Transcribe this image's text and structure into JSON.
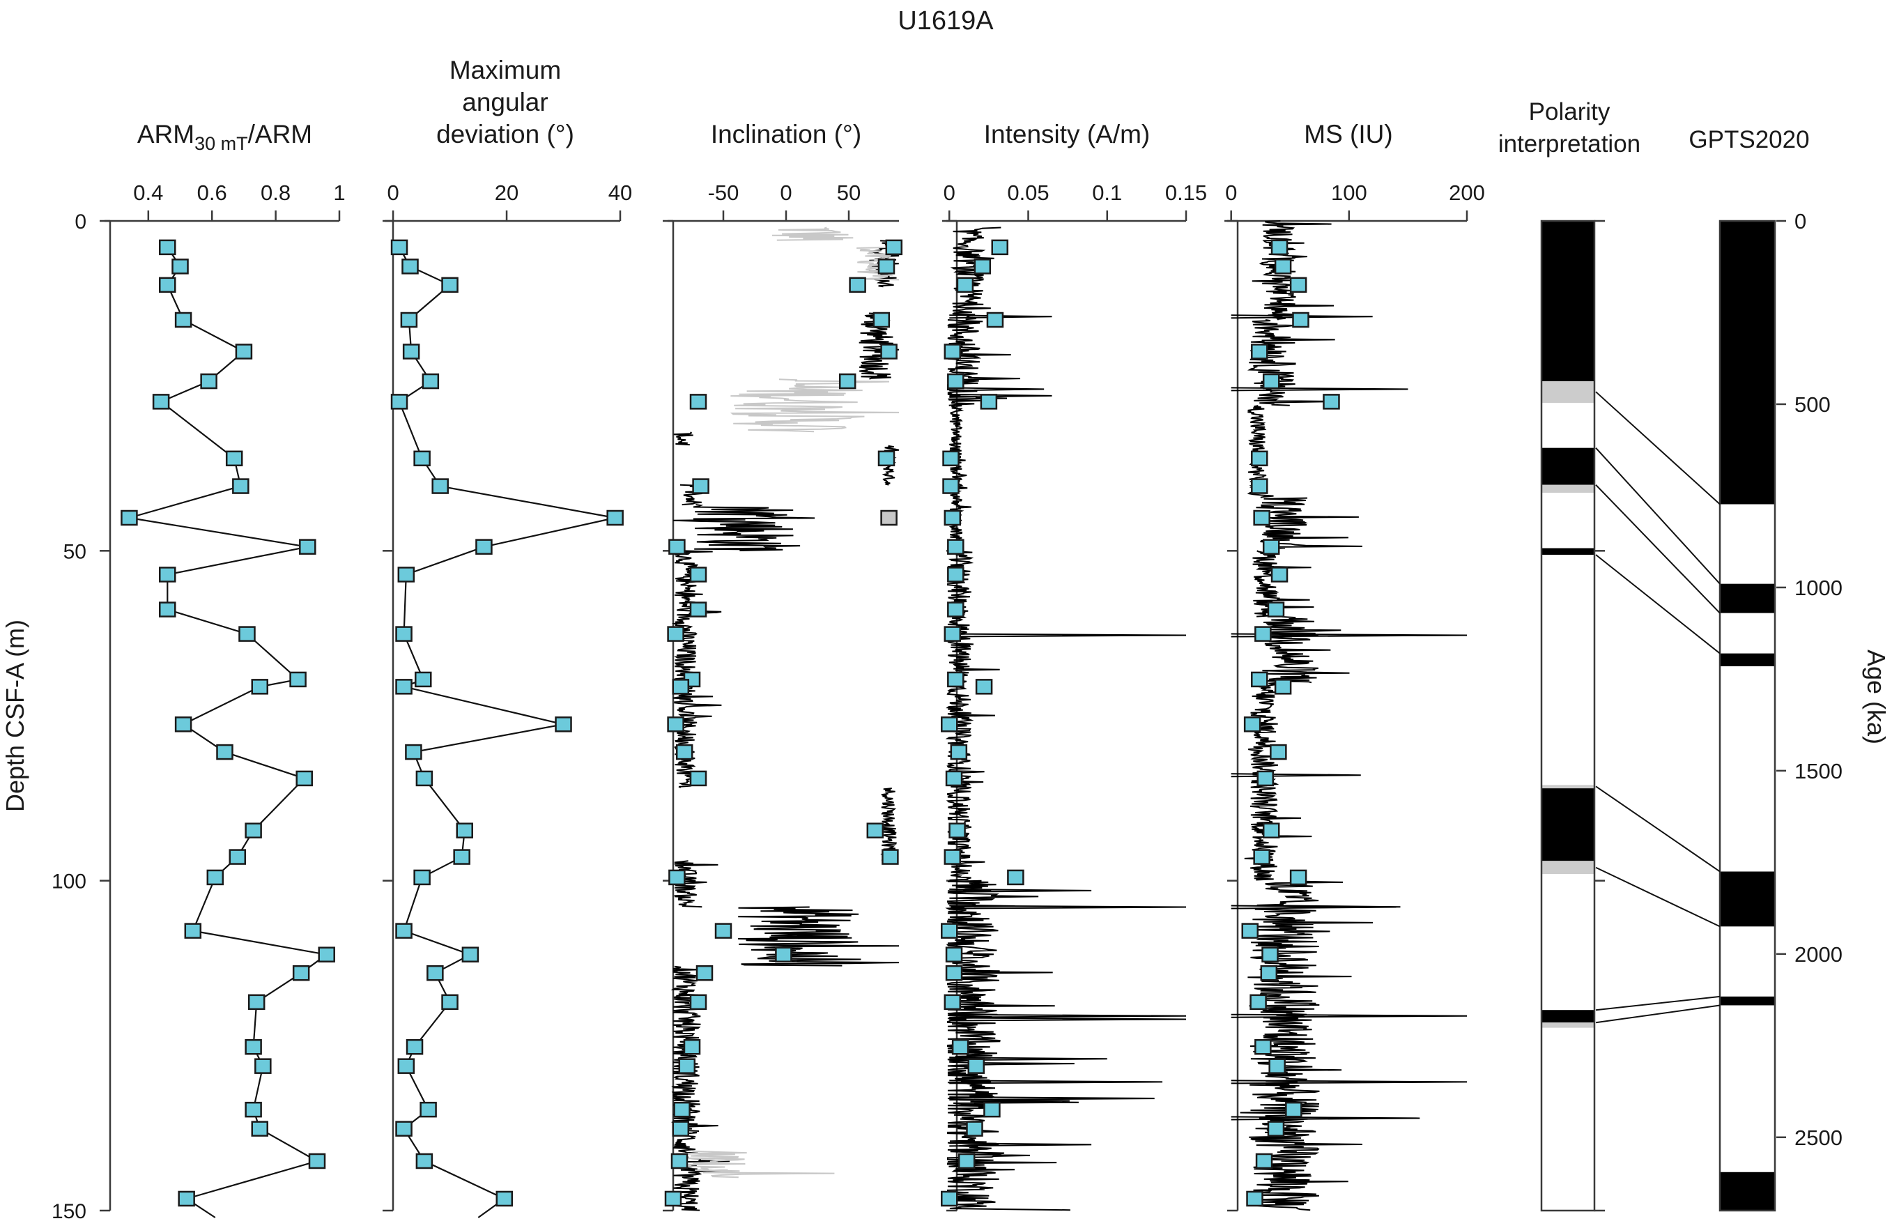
{
  "chart_data": {
    "type": "line",
    "title": "U1619A",
    "depth_axis": {
      "label": "Depth CSF-A (m)",
      "range": [
        0,
        150
      ],
      "ticks": [
        0,
        50,
        100,
        150
      ],
      "inverted": true
    },
    "age_axis": {
      "label": "Age (ka)",
      "range": [
        0,
        2700
      ],
      "ticks": [
        0,
        500,
        1000,
        1500,
        2000,
        2500
      ]
    },
    "sample_depths": [
      4.0,
      6.9,
      9.7,
      15.0,
      19.8,
      24.3,
      27.4,
      36.0,
      40.2,
      45.0,
      49.4,
      53.6,
      58.9,
      62.6,
      69.5,
      70.6,
      76.3,
      80.5,
      84.5,
      92.4,
      96.4,
      99.5,
      107.6,
      111.2,
      114.0,
      118.4,
      125.2,
      128.1,
      134.7,
      137.6,
      142.5,
      148.2
    ],
    "panels": [
      {
        "id": "arm",
        "title": "ARM",
        "title_sub": "30 mT",
        "title_suffix": "/ARM",
        "xlim": [
          0.28,
          1.0
        ],
        "ticks": [
          0.4,
          0.6,
          0.8,
          1.0
        ],
        "tick_labels": [
          "0.4",
          "0.6",
          "0.8",
          "1"
        ],
        "points": [
          0.46,
          0.5,
          0.46,
          0.51,
          0.7,
          0.59,
          0.44,
          0.67,
          0.69,
          0.34,
          0.9,
          0.46,
          0.46,
          0.71,
          0.87,
          0.75,
          0.51,
          0.64,
          0.89,
          0.73,
          0.68,
          0.61,
          0.54,
          0.96,
          0.88,
          0.74,
          0.73,
          0.76,
          0.73,
          0.75,
          0.93,
          0.52
        ],
        "continues_below": 0.61
      },
      {
        "id": "mad",
        "title_lines": [
          "Maximum",
          "angular",
          "deviation (°)"
        ],
        "xlim": [
          -0.5,
          40
        ],
        "ticks": [
          0,
          20,
          40
        ],
        "tick_labels": [
          "0",
          "20",
          "40"
        ],
        "points_depths": [
          4.0,
          6.9,
          9.7,
          15.0,
          19.8,
          24.3,
          27.4,
          36.0,
          40.2,
          45.0,
          49.4,
          53.6,
          62.6,
          69.5,
          70.6,
          76.3,
          80.5,
          84.5,
          92.4,
          96.4,
          99.5,
          107.6,
          111.2,
          114.0,
          118.4,
          125.2,
          128.1,
          134.7,
          137.6,
          142.5,
          148.2
        ],
        "points": [
          1.1,
          3.0,
          10.0,
          2.8,
          3.2,
          6.6,
          1.1,
          5.1,
          8.3,
          39.1,
          16.0,
          2.3,
          1.9,
          5.3,
          1.9,
          30.0,
          3.6,
          5.5,
          12.6,
          12.1,
          5.1,
          1.9,
          13.6,
          7.4,
          10.0,
          3.8,
          2.3,
          6.2,
          1.9,
          5.5,
          19.6
        ],
        "continues_below": 15.0
      },
      {
        "id": "inclination",
        "title": "Inclination (°)",
        "xlim": [
          -90,
          90
        ],
        "ticks": [
          -50,
          0,
          50
        ],
        "tick_labels": [
          "-50",
          "0",
          "50"
        ],
        "points": [
          86,
          80,
          57,
          76,
          82,
          49,
          -70,
          80,
          -68,
          82,
          -87,
          -70,
          -70,
          -88,
          -75,
          -84,
          -88,
          -81,
          -70,
          71,
          83,
          -87,
          -50,
          -2,
          -65,
          -70,
          -75,
          -79,
          -83,
          -84,
          -85,
          -90
        ],
        "gray_point_index": 9,
        "trace_segments": [
          {
            "from": 1,
            "to": 3,
            "level": 20,
            "noise": 40,
            "style": "gray"
          },
          {
            "from": 3,
            "to": 10,
            "level": 78,
            "noise": 12,
            "style": "black"
          },
          {
            "from": 4,
            "to": 9,
            "level": 70,
            "noise": 14,
            "style": "gray"
          },
          {
            "from": 14,
            "to": 24,
            "level": 72,
            "noise": 14,
            "style": "black"
          },
          {
            "from": 24,
            "to": 32,
            "level": 10,
            "noise": 55,
            "style": "gray"
          },
          {
            "from": 32,
            "to": 34,
            "level": -82,
            "noise": 8,
            "style": "black"
          },
          {
            "from": 34,
            "to": 40,
            "level": 82,
            "noise": 5,
            "style": "black"
          },
          {
            "from": 40,
            "to": 43,
            "level": -75,
            "noise": 10,
            "style": "black"
          },
          {
            "from": 43,
            "to": 50,
            "level": -30,
            "noise": 45,
            "style": "black"
          },
          {
            "from": 50,
            "to": 86,
            "level": -80,
            "noise": 9,
            "style": "black"
          },
          {
            "from": 86,
            "to": 97,
            "level": 82,
            "noise": 6,
            "style": "black"
          },
          {
            "from": 97,
            "to": 104,
            "level": -80,
            "noise": 9,
            "style": "black"
          },
          {
            "from": 104,
            "to": 113,
            "level": 10,
            "noise": 50,
            "style": "black"
          },
          {
            "from": 113,
            "to": 150,
            "level": -80,
            "noise": 12,
            "style": "black"
          },
          {
            "from": 141,
            "to": 145,
            "level": -60,
            "noise": 30,
            "style": "gray"
          }
        ]
      },
      {
        "id": "intensity",
        "title": "Intensity (A/m)",
        "xlim": [
          -0.001,
          0.15
        ],
        "ticks": [
          0,
          0.05,
          0.1,
          0.15
        ],
        "tick_labels": [
          "0",
          "0.05",
          "0.1",
          "0.15"
        ],
        "points": [
          0.032,
          0.021,
          0.01,
          0.029,
          0.002,
          0.004,
          0.025,
          0.001,
          0.001,
          0.002,
          0.004,
          0.004,
          0.004,
          0.002,
          0.004,
          0.022,
          0.0,
          0.006,
          0.003,
          0.005,
          0.002,
          0.042,
          0.0,
          0.003,
          0.003,
          0.002,
          0.007,
          0.017,
          0.027,
          0.016,
          0.011,
          0.0
        ],
        "spikes": [
          [
            14.5,
            0.065
          ],
          [
            25.5,
            0.06
          ],
          [
            26.5,
            0.065
          ],
          [
            62.8,
            0.15
          ],
          [
            101.5,
            0.09
          ],
          [
            104,
            0.15
          ],
          [
            120.5,
            0.15
          ],
          [
            121,
            0.15
          ],
          [
            127,
            0.1
          ],
          [
            130.5,
            0.135
          ],
          [
            133,
            0.13
          ],
          [
            140,
            0.09
          ]
        ],
        "trace_segments": [
          {
            "from": 1,
            "to": 15,
            "level": 0.012,
            "noise": 0.01
          },
          {
            "from": 15,
            "to": 28,
            "level": 0.008,
            "noise": 0.012
          },
          {
            "from": 28,
            "to": 50,
            "level": 0.004,
            "noise": 0.004
          },
          {
            "from": 50,
            "to": 100,
            "level": 0.006,
            "noise": 0.008
          },
          {
            "from": 100,
            "to": 150,
            "level": 0.012,
            "noise": 0.02
          }
        ]
      },
      {
        "id": "ms",
        "title": "MS (IU)",
        "xlim": [
          -1,
          200
        ],
        "ticks": [
          0,
          100,
          200
        ],
        "tick_labels": [
          "0",
          "100",
          "200"
        ],
        "points": [
          41,
          44,
          57,
          59,
          24,
          34,
          85,
          24,
          24,
          26,
          34,
          41,
          38,
          27,
          24,
          44,
          18,
          40,
          29,
          34,
          26,
          57,
          16,
          33,
          32,
          23,
          27,
          39,
          53,
          38,
          28,
          20
        ],
        "spikes": [
          [
            14.5,
            120
          ],
          [
            25.5,
            150
          ],
          [
            62.8,
            200
          ],
          [
            84,
            110
          ],
          [
            104,
            140
          ],
          [
            120.5,
            200
          ],
          [
            130.5,
            200
          ],
          [
            136,
            160
          ]
        ],
        "trace_segments": [
          {
            "from": 0,
            "to": 15,
            "level": 40,
            "noise": 15
          },
          {
            "from": 15,
            "to": 28,
            "level": 35,
            "noise": 20
          },
          {
            "from": 28,
            "to": 42,
            "level": 22,
            "noise": 8
          },
          {
            "from": 42,
            "to": 50,
            "level": 45,
            "noise": 20
          },
          {
            "from": 50,
            "to": 60,
            "level": 30,
            "noise": 12
          },
          {
            "from": 60,
            "to": 70,
            "level": 50,
            "noise": 25
          },
          {
            "from": 70,
            "to": 100,
            "level": 28,
            "noise": 12
          },
          {
            "from": 100,
            "to": 150,
            "level": 45,
            "noise": 30
          }
        ]
      }
    ],
    "polarity_interpretation": {
      "title_lines": [
        "Polarity",
        "interpretation"
      ],
      "units": [
        {
          "top": 0,
          "bottom": 24.3,
          "state": "normal"
        },
        {
          "top": 24.3,
          "bottom": 27.6,
          "state": "uncertain"
        },
        {
          "top": 27.6,
          "bottom": 34.4,
          "state": "reversed"
        },
        {
          "top": 34.4,
          "bottom": 40.0,
          "state": "normal"
        },
        {
          "top": 40.0,
          "bottom": 41.2,
          "state": "uncertain"
        },
        {
          "top": 41.2,
          "bottom": 49.6,
          "state": "reversed"
        },
        {
          "top": 49.6,
          "bottom": 50.6,
          "state": "normal"
        },
        {
          "top": 50.6,
          "bottom": 85.5,
          "state": "reversed"
        },
        {
          "top": 85.5,
          "bottom": 86.0,
          "state": "uncertain"
        },
        {
          "top": 86.0,
          "bottom": 97.0,
          "state": "normal"
        },
        {
          "top": 97.0,
          "bottom": 99.0,
          "state": "uncertain"
        },
        {
          "top": 99.0,
          "bottom": 119.6,
          "state": "reversed"
        },
        {
          "top": 119.6,
          "bottom": 121.5,
          "state": "normal"
        },
        {
          "top": 121.5,
          "bottom": 122.3,
          "state": "uncertain"
        },
        {
          "top": 122.3,
          "bottom": 150,
          "state": "reversed"
        }
      ]
    },
    "gpts": {
      "title": "GPTS2020",
      "units": [
        {
          "top": 0,
          "bottom": 773,
          "state": "normal"
        },
        {
          "top": 773,
          "bottom": 990,
          "state": "reversed"
        },
        {
          "top": 990,
          "bottom": 1070,
          "state": "normal"
        },
        {
          "top": 1070,
          "bottom": 1180,
          "state": "reversed"
        },
        {
          "top": 1180,
          "bottom": 1215,
          "state": "normal"
        },
        {
          "top": 1215,
          "bottom": 1775,
          "state": "reversed"
        },
        {
          "top": 1775,
          "bottom": 1925,
          "state": "normal"
        },
        {
          "top": 1925,
          "bottom": 2116,
          "state": "reversed"
        },
        {
          "top": 2116,
          "bottom": 2140,
          "state": "normal"
        },
        {
          "top": 2140,
          "bottom": 2595,
          "state": "reversed"
        },
        {
          "top": 2595,
          "bottom": 2700,
          "state": "normal"
        }
      ]
    },
    "tie_lines": [
      {
        "depth": 25.9,
        "age": 773
      },
      {
        "depth": 34.4,
        "age": 990
      },
      {
        "depth": 40.0,
        "age": 1070
      },
      {
        "depth": 50.6,
        "age": 1180
      },
      {
        "depth": 85.7,
        "age": 1775
      },
      {
        "depth": 98.0,
        "age": 1925
      },
      {
        "depth": 119.6,
        "age": 2116
      },
      {
        "depth": 121.5,
        "age": 2140
      }
    ],
    "colors": {
      "marker_fill": "#6ccadb",
      "marker_gray": "#c8c8c8",
      "marker_stroke": "#1a1a1a",
      "trace_black": "#000000",
      "trace_gray": "#c8c8c8",
      "normal": "#000000",
      "reversed": "#ffffff",
      "uncertain": "#cccccc",
      "axis": "#3a3a3a"
    }
  }
}
